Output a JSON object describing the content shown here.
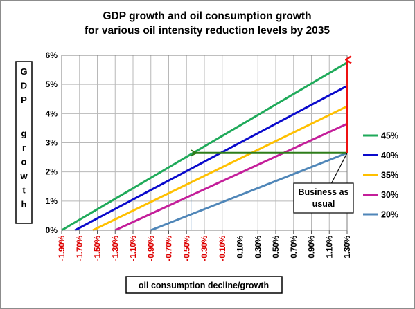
{
  "chart_data": {
    "type": "line",
    "title": [
      "GDP growth and oil consumption growth",
      "for various oil intensity reduction levels by 2035"
    ],
    "xlabel": "oil consumption decline/growth",
    "ylabel": "GDP growth",
    "x_ticks": [
      "-1.90%",
      "-1.70%",
      "-1.50%",
      "-1.30%",
      "-1.10%",
      "-0.90%",
      "-0.70%",
      "-0.50%",
      "-0.30%",
      "-0.10%",
      "0.10%",
      "0.30%",
      "0.50%",
      "0.70%",
      "0.90%",
      "1.10%",
      "1.30%"
    ],
    "y_ticks": [
      "0%",
      "1%",
      "2%",
      "3%",
      "4%",
      "5%",
      "6%"
    ],
    "xlim": [
      -1.9,
      1.3
    ],
    "ylim": [
      0,
      6
    ],
    "grid": true,
    "legend_position": "right",
    "series": [
      {
        "name": "45%",
        "color": "#1faa5a",
        "points": [
          [
            -1.9,
            0.0
          ],
          [
            1.3,
            5.75
          ]
        ]
      },
      {
        "name": "40%",
        "color": "#0a0acc",
        "points": [
          [
            -1.75,
            0.0
          ],
          [
            1.3,
            4.95
          ]
        ]
      },
      {
        "name": "35%",
        "color": "#ffc000",
        "points": [
          [
            -1.55,
            0.0
          ],
          [
            1.3,
            4.25
          ]
        ]
      },
      {
        "name": "30%",
        "color": "#c41e9a",
        "points": [
          [
            -1.3,
            0.0
          ],
          [
            1.3,
            3.65
          ]
        ]
      },
      {
        "name": "20%",
        "color": "#4f86b8",
        "points": [
          [
            -0.9,
            0.0
          ],
          [
            1.3,
            2.65
          ]
        ]
      }
    ],
    "annotations": {
      "business_as_usual": {
        "text": [
          "Business as",
          "usual"
        ],
        "point": [
          1.3,
          2.65
        ]
      },
      "green_arrow": {
        "from": [
          1.3,
          2.65
        ],
        "to": [
          -0.45,
          2.65
        ],
        "color": "#2e7d1a"
      },
      "red_arrow": {
        "from": [
          1.3,
          2.65
        ],
        "to": [
          1.3,
          5.85
        ],
        "color": "#ee1111"
      },
      "vertical_guide": {
        "x": -0.45,
        "y_from": 0,
        "y_to": 2.65,
        "color": "#4f86b8"
      }
    },
    "colors": {
      "negative_tick": "#dd0000",
      "positive_tick": "#000000",
      "grid": "#b8b8b8"
    }
  }
}
